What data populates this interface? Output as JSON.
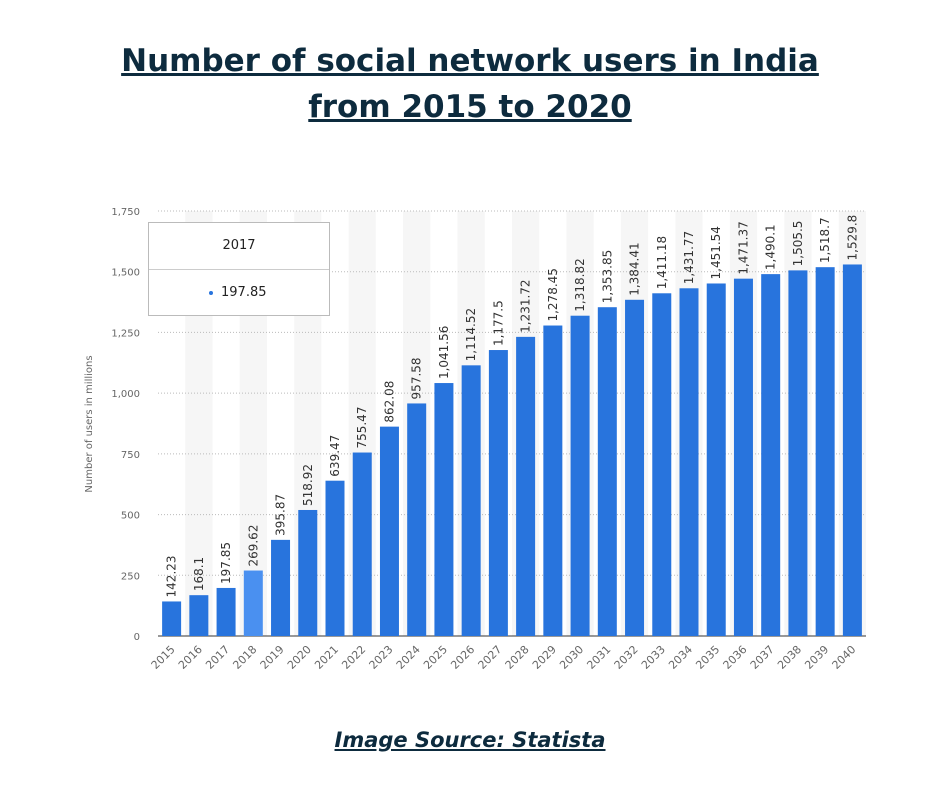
{
  "page_title": "Number of social network users in India from 2015 to 2020",
  "source": "Image Source: Statista",
  "tooltip": {
    "year": "2017",
    "value": "197.85"
  },
  "colors": {
    "bar": "#2874dd",
    "highlight": "#4a90f0",
    "title": "#0d2b3e"
  },
  "chart_data": {
    "type": "bar",
    "title": "Number of social network users in India from 2015 to 2020",
    "xlabel": "",
    "ylabel": "Number of users in millions",
    "ylim": [
      0,
      1750
    ],
    "yticks": [
      0,
      250,
      500,
      750,
      1000,
      1250,
      1500,
      1750
    ],
    "ytick_labels": [
      "0",
      "250",
      "500",
      "750",
      "1,000",
      "1,250",
      "1,500",
      "1,750"
    ],
    "grid": true,
    "categories": [
      "2015",
      "2016",
      "2017",
      "2018",
      "2019",
      "2020",
      "2021",
      "2022",
      "2023",
      "2024",
      "2025",
      "2026",
      "2027",
      "2028",
      "2029",
      "2030",
      "2031",
      "2032",
      "2033",
      "2034",
      "2035",
      "2036",
      "2037",
      "2038",
      "2039",
      "2040"
    ],
    "values": [
      142.23,
      168.1,
      197.85,
      269.62,
      395.87,
      518.92,
      639.47,
      755.47,
      862.08,
      957.58,
      1041.56,
      1114.52,
      1177.5,
      1231.72,
      1278.45,
      1318.82,
      1353.85,
      1384.41,
      1411.18,
      1431.77,
      1451.54,
      1471.37,
      1490.1,
      1505.5,
      1518.7,
      1529.8
    ],
    "labels": [
      "142.23",
      "168.1",
      "197.85",
      "269.62",
      "395.87",
      "518.92",
      "639.47",
      "755.47",
      "862.08",
      "957.58",
      "1,041.56",
      "1,114.52",
      "1,177.5",
      "1,231.72",
      "1,278.45",
      "1,318.82",
      "1,353.85",
      "1,384.41",
      "1,411.18",
      "1,431.77",
      "1,451.54",
      "1,471.37",
      "1,490.1",
      "1,505.5",
      "1,518.7",
      "1,529.8"
    ],
    "highlighted": "2018"
  }
}
